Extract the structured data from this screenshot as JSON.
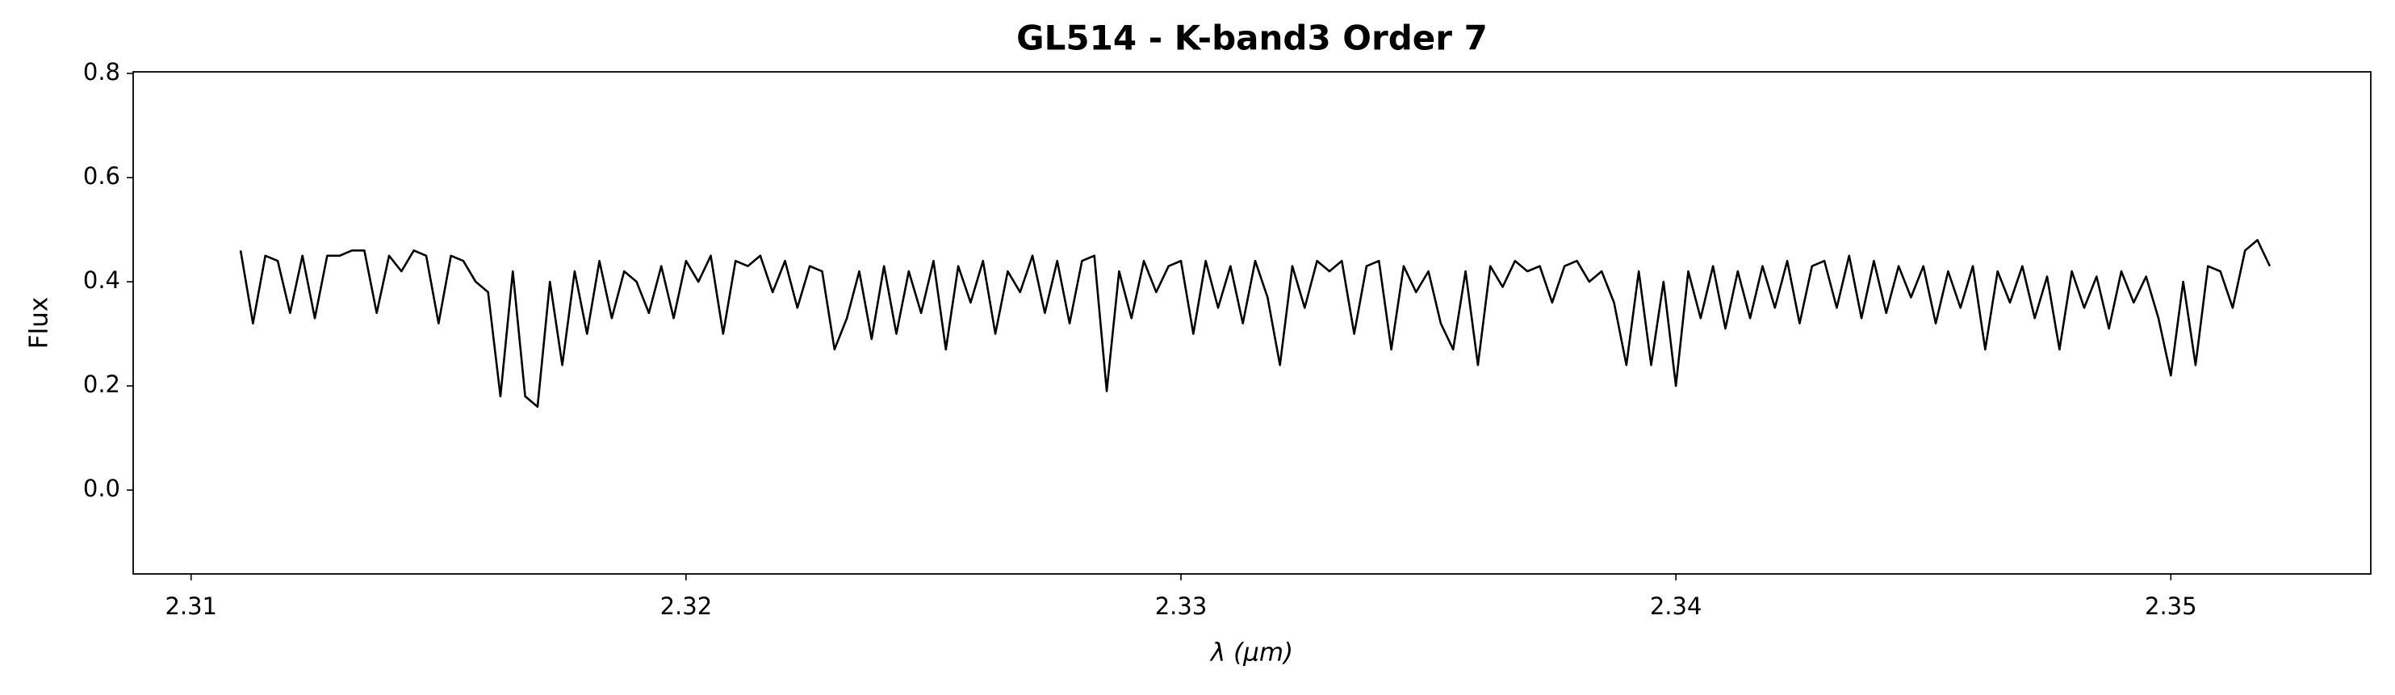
{
  "chart_data": {
    "type": "line",
    "title": "GL514 - K-band3 Order 7",
    "xlabel": "λ (μm)",
    "ylabel": "Flux",
    "color": "#000000",
    "x": [
      2.311,
      2.31125,
      2.3115,
      2.31175,
      2.312,
      2.31225,
      2.3125,
      2.31275,
      2.313,
      2.31325,
      2.3135,
      2.31375,
      2.314,
      2.31425,
      2.3145,
      2.31475,
      2.315,
      2.31525,
      2.3155,
      2.31575,
      2.316,
      2.31625,
      2.3165,
      2.31675,
      2.317,
      2.31725,
      2.3175,
      2.31775,
      2.318,
      2.31825,
      2.3185,
      2.31875,
      2.319,
      2.31925,
      2.3195,
      2.31975,
      2.32,
      2.32025,
      2.3205,
      2.32075,
      2.321,
      2.32125,
      2.3215,
      2.32175,
      2.322,
      2.32225,
      2.3225,
      2.32275,
      2.323,
      2.32325,
      2.3235,
      2.32375,
      2.324,
      2.32425,
      2.3245,
      2.32475,
      2.325,
      2.32525,
      2.3255,
      2.32575,
      2.326,
      2.32625,
      2.3265,
      2.32675,
      2.327,
      2.32725,
      2.3275,
      2.32775,
      2.328,
      2.32825,
      2.3285,
      2.32875,
      2.329,
      2.32925,
      2.3295,
      2.32975,
      2.33,
      2.33025,
      2.3305,
      2.33075,
      2.331,
      2.33125,
      2.3315,
      2.33175,
      2.332,
      2.33225,
      2.3325,
      2.33275,
      2.333,
      2.33325,
      2.3335,
      2.33375,
      2.334,
      2.33425,
      2.3345,
      2.33475,
      2.335,
      2.33525,
      2.3355,
      2.33575,
      2.336,
      2.33625,
      2.3365,
      2.33675,
      2.337,
      2.33725,
      2.3375,
      2.33775,
      2.338,
      2.33825,
      2.3385,
      2.33875,
      2.339,
      2.33925,
      2.3395,
      2.33975,
      2.34,
      2.34025,
      2.3405,
      2.34075,
      2.341,
      2.34125,
      2.3415,
      2.34175,
      2.342,
      2.34225,
      2.3425,
      2.34275,
      2.343,
      2.34325,
      2.3435,
      2.34375,
      2.344,
      2.34425,
      2.3445,
      2.34475,
      2.345,
      2.34525,
      2.3455,
      2.34575,
      2.346,
      2.34625,
      2.3465,
      2.34675,
      2.347,
      2.34725,
      2.3475,
      2.34775,
      2.348,
      2.34825,
      2.3485,
      2.34875,
      2.349,
      2.34925,
      2.3495,
      2.34975,
      2.35,
      2.35025,
      2.3505,
      2.35075,
      2.351,
      2.35125,
      2.3515,
      2.35175,
      2.352
    ],
    "values": [
      0.46,
      0.32,
      0.45,
      0.44,
      0.34,
      0.45,
      0.33,
      0.45,
      0.45,
      0.46,
      0.46,
      0.34,
      0.45,
      0.42,
      0.46,
      0.45,
      0.32,
      0.45,
      0.44,
      0.4,
      0.38,
      0.18,
      0.42,
      0.18,
      0.16,
      0.4,
      0.24,
      0.42,
      0.3,
      0.44,
      0.33,
      0.42,
      0.4,
      0.34,
      0.43,
      0.33,
      0.44,
      0.4,
      0.45,
      0.3,
      0.44,
      0.43,
      0.45,
      0.38,
      0.44,
      0.35,
      0.43,
      0.42,
      0.27,
      0.33,
      0.42,
      0.29,
      0.43,
      0.3,
      0.42,
      0.34,
      0.44,
      0.27,
      0.43,
      0.36,
      0.44,
      0.3,
      0.42,
      0.38,
      0.45,
      0.34,
      0.44,
      0.32,
      0.44,
      0.45,
      0.19,
      0.42,
      0.33,
      0.44,
      0.38,
      0.43,
      0.44,
      0.3,
      0.44,
      0.35,
      0.43,
      0.32,
      0.44,
      0.37,
      0.24,
      0.43,
      0.35,
      0.44,
      0.42,
      0.44,
      0.3,
      0.43,
      0.44,
      0.27,
      0.43,
      0.38,
      0.42,
      0.32,
      0.27,
      0.42,
      0.24,
      0.43,
      0.39,
      0.44,
      0.42,
      0.43,
      0.36,
      0.43,
      0.44,
      0.4,
      0.42,
      0.36,
      0.24,
      0.42,
      0.24,
      0.4,
      0.2,
      0.42,
      0.33,
      0.43,
      0.31,
      0.42,
      0.33,
      0.43,
      0.35,
      0.44,
      0.32,
      0.43,
      0.44,
      0.35,
      0.45,
      0.33,
      0.44,
      0.34,
      0.43,
      0.37,
      0.43,
      0.32,
      0.42,
      0.35,
      0.43,
      0.27,
      0.42,
      0.36,
      0.43,
      0.33,
      0.41,
      0.27,
      0.42,
      0.35,
      0.41,
      0.31,
      0.42,
      0.36,
      0.41,
      0.33,
      0.22,
      0.4,
      0.24,
      0.43,
      0.42,
      0.35,
      0.46,
      0.48,
      0.43
    ],
    "xlim": [
      2.30883,
      2.35404
    ],
    "ylim": [
      -0.161,
      0.803
    ],
    "xticks": [
      2.31,
      2.32,
      2.33,
      2.34,
      2.35
    ],
    "yticks": [
      {
        "value": 0,
        "label": "0.0"
      },
      0.2,
      0.4,
      0.6,
      0.8
    ]
  }
}
